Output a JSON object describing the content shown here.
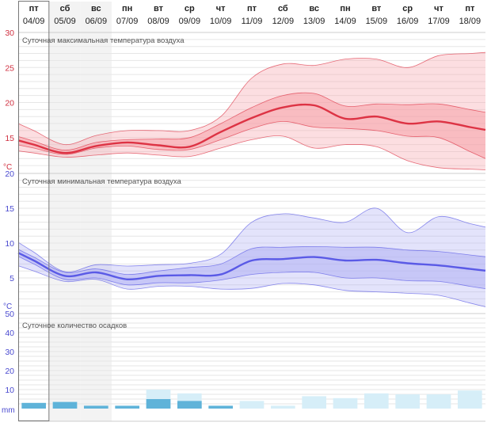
{
  "days": [
    {
      "dow": "пт",
      "date": "04/09"
    },
    {
      "dow": "сб",
      "date": "05/09"
    },
    {
      "dow": "вс",
      "date": "06/09"
    },
    {
      "dow": "пн",
      "date": "07/09"
    },
    {
      "dow": "вт",
      "date": "08/09"
    },
    {
      "dow": "ср",
      "date": "09/09"
    },
    {
      "dow": "чт",
      "date": "10/09"
    },
    {
      "dow": "пт",
      "date": "11/09"
    },
    {
      "dow": "сб",
      "date": "12/09"
    },
    {
      "dow": "вс",
      "date": "13/09"
    },
    {
      "dow": "пн",
      "date": "14/09"
    },
    {
      "dow": "вт",
      "date": "15/09"
    },
    {
      "dow": "ср",
      "date": "16/09"
    },
    {
      "dow": "чт",
      "date": "17/09"
    },
    {
      "dow": "пт",
      "date": "18/09"
    }
  ],
  "weekend_indices": [
    1,
    2
  ],
  "selected_index": 0,
  "colors": {
    "max_line": "#dd3344",
    "max_band": "#f5a0a8",
    "min_line": "#5a5ae6",
    "min_band": "#b0b0f4",
    "precip_bar": "#5fb3d9",
    "precip_light": "#d6eef8",
    "axis_red": "#d03040",
    "axis_blue": "#4a4ad0"
  },
  "chart_data": [
    {
      "type": "area",
      "title": "Суточная максимальная температура воздуха",
      "unit": "°C",
      "ylim": [
        10,
        30
      ],
      "yticks": [
        15,
        20,
        25,
        30
      ],
      "median": [
        14.0,
        12.8,
        13.8,
        14.3,
        13.9,
        13.7,
        15.8,
        17.8,
        19.3,
        19.6,
        17.7,
        18.0,
        17.0,
        17.3,
        16.5
      ],
      "inner_band": {
        "low": [
          13.5,
          12.6,
          13.5,
          13.8,
          13.3,
          13.3,
          14.7,
          16.3,
          17.3,
          16.5,
          16.3,
          16.0,
          15.2,
          15.0,
          13.0
        ],
        "high": [
          14.5,
          13.2,
          14.3,
          14.7,
          14.8,
          15.0,
          17.0,
          19.3,
          21.0,
          21.3,
          19.5,
          19.8,
          19.7,
          19.8,
          19.0
        ]
      },
      "outer_band": {
        "low": [
          12.8,
          12.2,
          12.5,
          12.8,
          12.5,
          12.3,
          13.5,
          14.7,
          15.2,
          13.5,
          14.0,
          13.7,
          11.7,
          10.7,
          10.5
        ],
        "high": [
          16.0,
          14.0,
          15.3,
          16.0,
          16.0,
          16.0,
          18.0,
          23.5,
          25.5,
          25.3,
          26.2,
          26.2,
          25.0,
          26.7,
          27.0
        ]
      }
    },
    {
      "type": "area",
      "title": "Суточная минимальная температура воздуха",
      "unit": "°C",
      "ylim": [
        0,
        20
      ],
      "yticks": [
        5,
        10,
        15,
        20
      ],
      "median": [
        7.5,
        5.3,
        5.8,
        4.8,
        5.3,
        5.4,
        5.5,
        7.5,
        7.7,
        8.0,
        7.5,
        7.6,
        7.1,
        6.8,
        6.3
      ],
      "inner_band": {
        "low": [
          7.0,
          4.8,
          5.0,
          4.0,
          4.3,
          4.3,
          4.7,
          5.5,
          5.8,
          5.8,
          5.0,
          5.0,
          4.6,
          4.5,
          3.8
        ],
        "high": [
          8.0,
          5.8,
          6.3,
          5.5,
          6.0,
          6.5,
          7.0,
          9.2,
          9.4,
          9.5,
          9.4,
          9.4,
          9.0,
          8.8,
          8.3
        ]
      },
      "outer_band": {
        "low": [
          6.0,
          4.5,
          4.8,
          3.4,
          3.8,
          3.8,
          3.4,
          3.5,
          4.2,
          4.0,
          3.2,
          3.0,
          2.8,
          2.5,
          1.4
        ],
        "high": [
          8.7,
          5.9,
          6.9,
          6.7,
          6.9,
          7.1,
          8.4,
          13.0,
          14.2,
          13.6,
          13.0,
          15.0,
          11.5,
          13.8,
          12.8
        ]
      }
    },
    {
      "type": "bar",
      "title": "Суточное количество осадков",
      "unit": "mm",
      "ylim": [
        0,
        50
      ],
      "yticks": [
        10,
        20,
        30,
        40,
        50
      ],
      "values": [
        3,
        3.5,
        1.5,
        1.5,
        5,
        4,
        1.5,
        0,
        0,
        0,
        0,
        0,
        0,
        0,
        0
      ],
      "values_light": [
        0,
        0,
        0,
        0,
        10,
        8,
        0,
        4,
        1.5,
        6.5,
        5.5,
        8,
        7.5,
        7.5,
        9.5
      ]
    }
  ]
}
